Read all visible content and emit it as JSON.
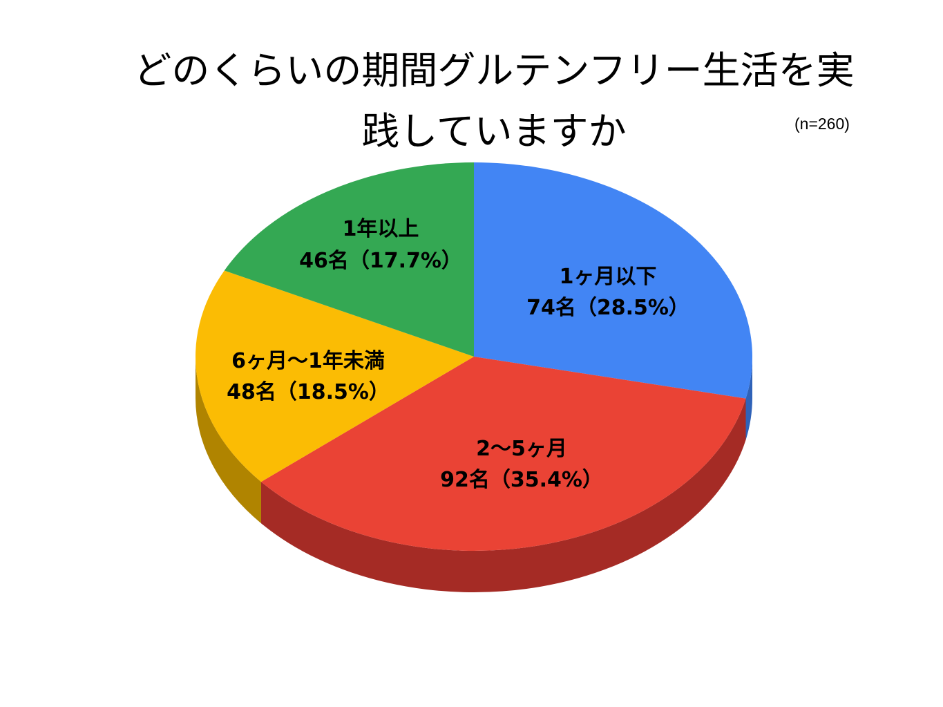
{
  "title": {
    "line1": "どのくらいの期間グルテンフリー生活を実",
    "line2": "践していますか"
  },
  "sample_note": "(n=260)",
  "chart_data": {
    "type": "pie",
    "style": "3d",
    "start_angle_deg": 0,
    "direction": "clockwise",
    "slices": [
      {
        "label": "1ヶ月以下",
        "value": 74,
        "percent": 28.5,
        "value_label": "74名（28.5%）",
        "color": "#4285f4",
        "side_color": "#2f62b8"
      },
      {
        "label": "2〜5ヶ月",
        "value": 92,
        "percent": 35.4,
        "value_label": "92名（35.4%）",
        "color": "#ea4335",
        "side_color": "#a52b25"
      },
      {
        "label": "6ヶ月〜1年未満",
        "value": 48,
        "percent": 18.5,
        "value_label": "48名（18.5%）",
        "color": "#fbbc04",
        "side_color": "#b08400"
      },
      {
        "label": "1年以上",
        "value": 46,
        "percent": 17.7,
        "value_label": "46名（17.7%）",
        "color": "#34a853",
        "side_color": "#227a39"
      }
    ]
  }
}
